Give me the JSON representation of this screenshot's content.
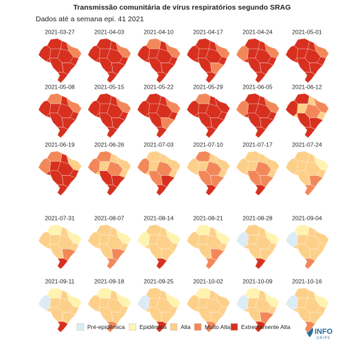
{
  "title": "Transmissão comunitária de vírus respiratórios segundo SRAG",
  "subtitle": "Dados até a semana epi. 41 2021",
  "panels": [
    "2021-03-27",
    "2021-04-03",
    "2021-04-10",
    "2021-04-17",
    "2021-04-24",
    "2021-05-01",
    "2021-05-08",
    "2021-05-15",
    "2021-05-22",
    "2021-05-29",
    "2021-06-05",
    "2021-06-12",
    "2021-06-19",
    "2021-06-26",
    "2021-07-03",
    "2021-07-10",
    "2021-07-17",
    "2021-07-24",
    "2021-07-31",
    "2021-08-07",
    "2021-08-14",
    "2021-08-21",
    "2021-08-28",
    "2021-09-04",
    "2021-09-11",
    "2021-09-18",
    "2021-09-25",
    "2021-10-02",
    "2021-10-09",
    "2021-10-16"
  ],
  "legend": [
    {
      "label": "Pré-epidêmica",
      "color": "#dcecf5"
    },
    {
      "label": "Epidêmica",
      "color": "#fff3b0"
    },
    {
      "label": "Alta",
      "color": "#fdd08a"
    },
    {
      "label": "Muito Alta",
      "color": "#f2885a"
    },
    {
      "label": "Extremamente Alta",
      "color": "#d7301f"
    }
  ],
  "logo": {
    "main": "INFO",
    "sub": "GRIPE"
  }
}
